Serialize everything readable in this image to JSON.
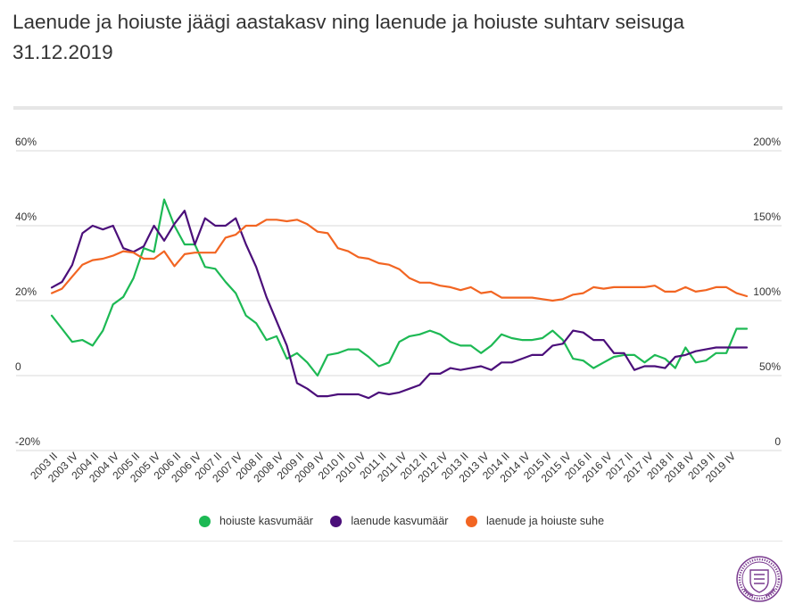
{
  "title": "Laenude ja hoiuste jäägi aastakasv ning laenude ja hoiuste suhtarv seisuga 31.12.2019",
  "legend": {
    "deposits": "hoiuste kasvumäär",
    "loans": "laenude kasvumäär",
    "ratio": "laenude ja hoiuste suhe"
  },
  "colors": {
    "deposits": "#1db954",
    "loans": "#4b0f7a",
    "ratio": "#f26522",
    "grid": "#d9d9d9",
    "seal": "#7a3b8f"
  },
  "chart_data": {
    "type": "line",
    "x_tick_labels": [
      "2003 II",
      "2003 IV",
      "2004 II",
      "2004 IV",
      "2005 II",
      "2005 IV",
      "2006 II",
      "2006 IV",
      "2007 II",
      "2007 IV",
      "2008 II",
      "2008 IV",
      "2009 II",
      "2009 IV",
      "2010 II",
      "2010 IV",
      "2011 II",
      "2011 IV",
      "2012 II",
      "2012 IV",
      "2013 II",
      "2013 IV",
      "2014 II",
      "2014 IV",
      "2015 II",
      "2015 IV",
      "2016 II",
      "2016 IV",
      "2017 II",
      "2017 IV",
      "2018 II",
      "2018 IV",
      "2019 II",
      "2019 IV"
    ],
    "left_axis": {
      "ticks": [
        "-20%",
        "0",
        "20%",
        "40%",
        "60%"
      ],
      "range": [
        -20,
        60
      ]
    },
    "right_axis": {
      "ticks": [
        "0",
        "50%",
        "100%",
        "150%",
        "200%"
      ],
      "range": [
        0,
        200
      ]
    },
    "series": [
      {
        "name": "hoiuste kasvumäär",
        "axis": "left",
        "color": "#1db954",
        "values": [
          16,
          12.5,
          9,
          9.5,
          8,
          12,
          19,
          21,
          26,
          34,
          33,
          47,
          40,
          35,
          35,
          29,
          28.5,
          25,
          22,
          16,
          14,
          9.5,
          10.5,
          4.5,
          6,
          3.5,
          0,
          5.5,
          6,
          7,
          7,
          5,
          2.5,
          3.5,
          9,
          10.5,
          11,
          12,
          11,
          9,
          8,
          8,
          6,
          8,
          11,
          10,
          9.5,
          9.5,
          10,
          12,
          9.5,
          4.5,
          4,
          2,
          3.5,
          5,
          5.5,
          5.5,
          3.5,
          5.5,
          4.5,
          2,
          7.5,
          3.5,
          4,
          6,
          6,
          12.5,
          12.5
        ]
      },
      {
        "name": "laenude kasvumäär",
        "axis": "left",
        "color": "#4b0f7a",
        "values": [
          23.5,
          25,
          29.5,
          38,
          40,
          39,
          40,
          34,
          33,
          34.5,
          40,
          36,
          40.5,
          44,
          35,
          42,
          40,
          40,
          42,
          35,
          29,
          21,
          14.5,
          8,
          -2,
          -3.5,
          -5.5,
          -5.5,
          -5,
          -5,
          -5,
          -6,
          -4.5,
          -5,
          -4.5,
          -3.5,
          -2.5,
          0.5,
          0.5,
          2,
          1.5,
          2,
          2.5,
          1.5,
          3.5,
          3.5,
          4.5,
          5.5,
          5.5,
          8,
          8.5,
          12,
          11.5,
          9.5,
          9.5,
          6,
          6,
          1.5,
          2.5,
          2.5,
          2,
          5,
          5.5,
          6.5,
          7,
          7.5,
          7.5,
          7.5,
          7.5
        ]
      },
      {
        "name": "laenude ja hoiuste suhe",
        "axis": "right",
        "color": "#f26522",
        "values": [
          105,
          108,
          116,
          124,
          127,
          128,
          130,
          133,
          132,
          128,
          128,
          133,
          123,
          131,
          132,
          132,
          132,
          142,
          144,
          150,
          150,
          154,
          154,
          153,
          154,
          151,
          146,
          145,
          135,
          133,
          129,
          128,
          125,
          124,
          121,
          115,
          112,
          112,
          110,
          109,
          107,
          109,
          105,
          106,
          102,
          102,
          102,
          102,
          101,
          100,
          101,
          104,
          105,
          109,
          108,
          109,
          109,
          109,
          109,
          110,
          106,
          106,
          109,
          106,
          107,
          109,
          109,
          105,
          103
        ]
      }
    ]
  }
}
